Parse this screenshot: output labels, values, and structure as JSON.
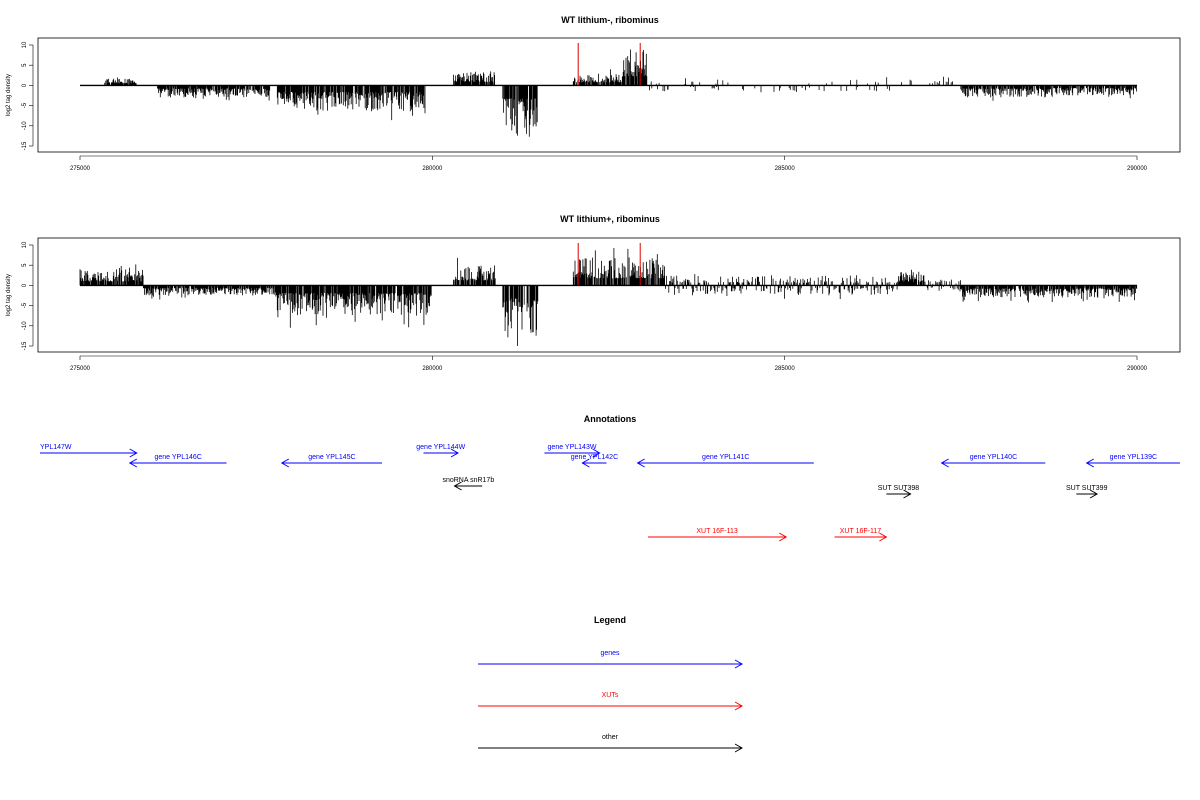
{
  "chart_data": [
    {
      "type": "bar",
      "title": "WT lithium-, ribominus",
      "ylabel": "log2 tag density",
      "xlim": [
        275000,
        290000
      ],
      "ylim": [
        -15,
        10
      ],
      "yticks": [
        10,
        5,
        0,
        -5,
        -10,
        -15
      ],
      "xticks": [
        275000,
        280000,
        285000,
        290000
      ],
      "grid": false,
      "series_color": "#000000",
      "profile": [
        {
          "from": 275000,
          "to": 275350,
          "dir": "none",
          "amp": 0
        },
        {
          "from": 275350,
          "to": 275800,
          "dir": "up",
          "amp": 2
        },
        {
          "from": 275800,
          "to": 276100,
          "dir": "none",
          "amp": 0
        },
        {
          "from": 276100,
          "to": 277700,
          "dir": "down",
          "amp": 3
        },
        {
          "from": 277700,
          "to": 277800,
          "dir": "none",
          "amp": 0
        },
        {
          "from": 277800,
          "to": 279900,
          "dir": "down",
          "amp": 6.5
        },
        {
          "from": 279900,
          "to": 280300,
          "dir": "none",
          "amp": 0
        },
        {
          "from": 280300,
          "to": 280900,
          "dir": "up",
          "amp": 3.5
        },
        {
          "from": 280900,
          "to": 281000,
          "dir": "none",
          "amp": 0
        },
        {
          "from": 281000,
          "to": 281500,
          "dir": "down",
          "amp": 13
        },
        {
          "from": 281500,
          "to": 282000,
          "dir": "none",
          "amp": 0
        },
        {
          "from": 282000,
          "to": 282700,
          "dir": "up",
          "amp": 3
        },
        {
          "from": 282700,
          "to": 283050,
          "dir": "up",
          "amp": 9
        },
        {
          "from": 283050,
          "to": 284200,
          "dir": "sparse",
          "amp": 1.5
        },
        {
          "from": 284200,
          "to": 285200,
          "dir": "sparse_down",
          "amp": 2
        },
        {
          "from": 285200,
          "to": 286500,
          "dir": "sparse",
          "amp": 1.5
        },
        {
          "from": 286500,
          "to": 287500,
          "dir": "sparse_up",
          "amp": 2
        },
        {
          "from": 287500,
          "to": 288800,
          "dir": "down",
          "amp": 3
        },
        {
          "from": 288800,
          "to": 290000,
          "dir": "down",
          "amp": 2.5
        }
      ],
      "markers": [
        {
          "x": 282070,
          "color": "#e00000"
        },
        {
          "x": 282950,
          "color": "#e00000"
        }
      ]
    },
    {
      "type": "bar",
      "title": "WT lithium+, ribominus",
      "ylabel": "log2 tag density",
      "xlim": [
        275000,
        290000
      ],
      "ylim": [
        -15,
        10
      ],
      "yticks": [
        10,
        5,
        0,
        -5,
        -10,
        -15
      ],
      "xticks": [
        275000,
        280000,
        285000,
        290000
      ],
      "grid": false,
      "series_color": "#000000",
      "profile": [
        {
          "from": 275000,
          "to": 275900,
          "dir": "up",
          "amp": 4
        },
        {
          "from": 275900,
          "to": 277800,
          "dir": "down",
          "amp": 2.5
        },
        {
          "from": 277800,
          "to": 280000,
          "dir": "down",
          "amp": 7.5
        },
        {
          "from": 280000,
          "to": 280300,
          "dir": "none",
          "amp": 0
        },
        {
          "from": 280300,
          "to": 280900,
          "dir": "up",
          "amp": 5
        },
        {
          "from": 280900,
          "to": 281000,
          "dir": "none",
          "amp": 0
        },
        {
          "from": 281000,
          "to": 281500,
          "dir": "down",
          "amp": 13
        },
        {
          "from": 281500,
          "to": 282000,
          "dir": "none",
          "amp": 0
        },
        {
          "from": 282000,
          "to": 283300,
          "dir": "up",
          "amp": 7
        },
        {
          "from": 283300,
          "to": 286600,
          "dir": "mixed",
          "amp": 2.5
        },
        {
          "from": 286600,
          "to": 287000,
          "dir": "up",
          "amp": 3.5
        },
        {
          "from": 287000,
          "to": 287500,
          "dir": "mixed",
          "amp": 1.5
        },
        {
          "from": 287500,
          "to": 290000,
          "dir": "down",
          "amp": 3
        }
      ],
      "markers": [
        {
          "x": 282070,
          "color": "#e00000"
        },
        {
          "x": 282950,
          "color": "#e00000"
        }
      ]
    }
  ],
  "annotations": {
    "title": "Annotations",
    "items": [
      {
        "label": "YPL147W",
        "start": 274000,
        "end": 276800,
        "strand": "+",
        "row": 0,
        "color": "#0000ff",
        "label_pos": "left"
      },
      {
        "label": "gene YPL146C",
        "start": 276600,
        "end": 279400,
        "strand": "-",
        "row": 1,
        "color": "#0000ff"
      },
      {
        "label": "gene YPL145C",
        "start": 281000,
        "end": 283900,
        "strand": "-",
        "row": 1,
        "color": "#0000ff"
      },
      {
        "label": "gene YPL144W",
        "start": 285100,
        "end": 286100,
        "strand": "+",
        "row": 0,
        "color": "#0000ff"
      },
      {
        "label": "gene YPL143W",
        "start": 288600,
        "end": 290200,
        "strand": "+",
        "row": 0,
        "color": "#0000ff"
      },
      {
        "label": "gene YPL142C",
        "start": 289700,
        "end": 290400,
        "strand": "-",
        "row": 1,
        "color": "#0000ff"
      },
      {
        "label": "gene YPL141C",
        "start": 291300,
        "end": 296400,
        "strand": "-",
        "row": 1,
        "color": "#0000ff"
      },
      {
        "label": "gene YPL140C",
        "start": 300100,
        "end": 303100,
        "strand": "-",
        "row": 1,
        "color": "#0000ff"
      },
      {
        "label": "gene YPL139C",
        "start": 304300,
        "end": 307000,
        "strand": "-",
        "row": 1,
        "color": "#0000ff"
      },
      {
        "label": "snoRNA snR17b",
        "start": 286000,
        "end": 286800,
        "strand": "-",
        "row": 2,
        "color": "#000000"
      },
      {
        "label": "SUT SUT398",
        "start": 298500,
        "end": 299200,
        "strand": "+",
        "row": 3,
        "color": "#000000"
      },
      {
        "label": "SUT SUT399",
        "start": 304000,
        "end": 304600,
        "strand": "+",
        "row": 3,
        "color": "#000000"
      },
      {
        "label": "XUT 16F-113",
        "start": 291600,
        "end": 295600,
        "strand": "+",
        "row": 4,
        "color": "#ff0000"
      },
      {
        "label": "XUT 16F-117",
        "start": 297000,
        "end": 298500,
        "strand": "+",
        "row": 4,
        "color": "#ff0000"
      }
    ]
  },
  "legend": {
    "title": "Legend",
    "entries": [
      {
        "label": "genes",
        "color": "#0000ff"
      },
      {
        "label": "XUTs",
        "color": "#ff0000"
      },
      {
        "label": "other",
        "color": "#000000"
      }
    ]
  }
}
